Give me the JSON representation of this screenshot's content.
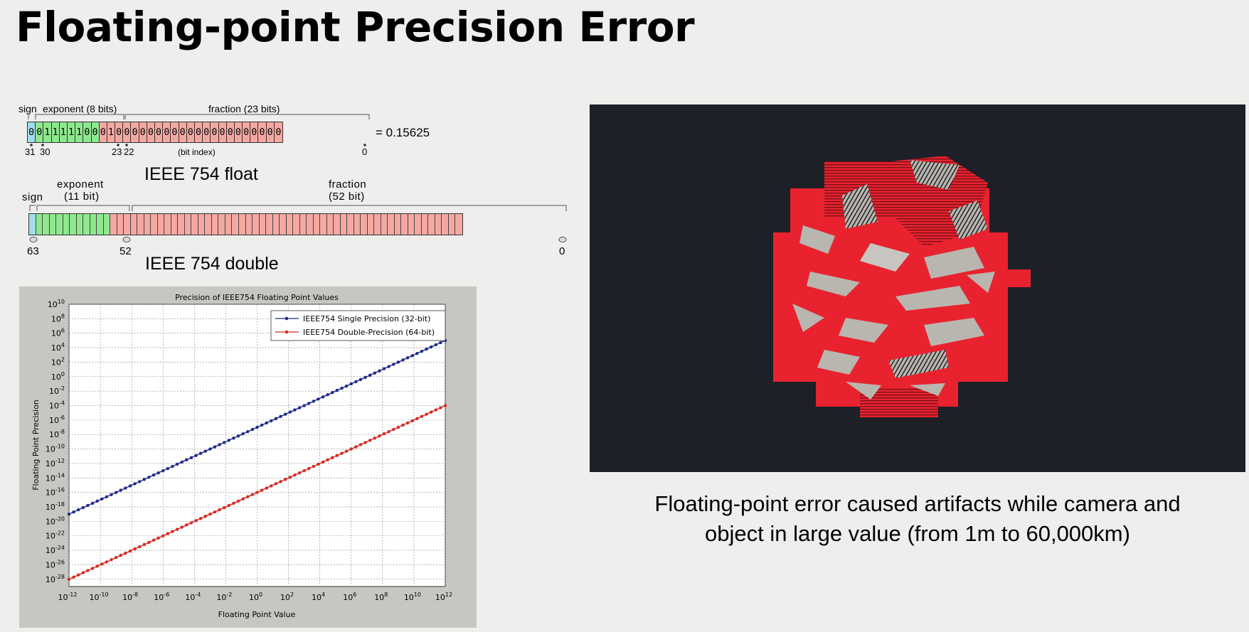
{
  "title": "Floating-point Precision Error",
  "float_diagram": {
    "sign_label": "sign",
    "exponent_label": "exponent (8 bits)",
    "fraction_label": "fraction (23 bits)",
    "bits": [
      "0",
      "0",
      "1",
      "1",
      "1",
      "1",
      "1",
      "0",
      "0",
      "0",
      "1",
      "0",
      "0",
      "0",
      "0",
      "0",
      "0",
      "0",
      "0",
      "0",
      "0",
      "0",
      "0",
      "0",
      "0",
      "0",
      "0",
      "0",
      "0",
      "0",
      "0",
      "0"
    ],
    "equals_value": "= 0.15625",
    "idx_31": "31",
    "idx_30": "30",
    "idx_23": "23",
    "idx_22": "22",
    "bit_index_label": "(bit index)",
    "idx_0": "0",
    "caption": "IEEE 754 float"
  },
  "double_diagram": {
    "sign_label": "sign",
    "exponent_label_1": "exponent",
    "exponent_label_2": "(11 bit)",
    "fraction_label_1": "fraction",
    "fraction_label_2": "(52 bit)",
    "idx_63": "63",
    "idx_52": "52",
    "idx_0": "0",
    "caption": "IEEE 754 double"
  },
  "colors": {
    "sign": "#9fdcec",
    "exponent": "#8ee88e",
    "fraction": "#f5a8a2",
    "single_series": "#1f2a8a",
    "double_series": "#d42a22",
    "artifact_red": "#e8232f",
    "artifact_grey": "#b9b6b0"
  },
  "chart_data": {
    "type": "line",
    "title": "Precision of IEEE754 Floating Point Values",
    "xlabel": "Floating Point Value",
    "ylabel": "Floating Point Precision",
    "log_x": true,
    "log_y": true,
    "xlim": [
      1e-12,
      1000000000000.0
    ],
    "ylim": [
      1e-29,
      10000000000.0
    ],
    "x_ticks": [
      "10^-12",
      "10^-10",
      "10^-8",
      "10^-6",
      "10^-4",
      "10^-2",
      "10^0",
      "10^2",
      "10^4",
      "10^6",
      "10^8",
      "10^10",
      "10^12"
    ],
    "y_ticks": [
      "10^10",
      "10^8",
      "10^6",
      "10^4",
      "10^2",
      "10^0",
      "10^-2",
      "10^-4",
      "10^-6",
      "10^-8",
      "10^-10",
      "10^-12",
      "10^-14",
      "10^-16",
      "10^-18",
      "10^-20",
      "10^-22",
      "10^-24",
      "10^-26",
      "10^-28"
    ],
    "grid": true,
    "legend_position": "top-right",
    "series": [
      {
        "name": "IEEE754 Single Precision (32-bit)",
        "color": "#1f2a8a",
        "x_exponents": [
          -12,
          12
        ],
        "y_exponents": [
          -19,
          5
        ]
      },
      {
        "name": "IEEE754 Double-Precision (64-bit)",
        "color": "#d42a22",
        "x_exponents": [
          -12,
          12
        ],
        "y_exponents": [
          -28,
          -4
        ]
      }
    ]
  },
  "render_caption_line1": "Floating-point error caused artifacts while camera and",
  "render_caption_line2": "object in large value (from 1m to 60,000km)"
}
